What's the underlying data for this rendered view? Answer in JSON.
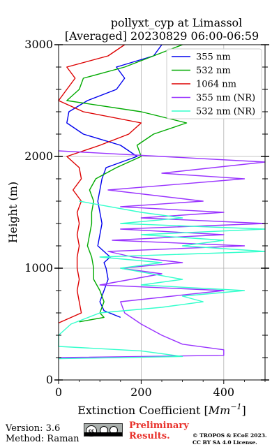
{
  "chart_data": {
    "type": "line",
    "title_line1": "pollyxt_cyp at Limassol",
    "title_line2": "[Averaged] 20230829 06:00-06:59",
    "xlabel": "Extinction Coefficient [",
    "xlabel_unit": "Mm",
    "xlabel_exp": "−1",
    "xlabel_close": "]",
    "ylabel": "Height (m)",
    "xlim": [
      0,
      500
    ],
    "ylim": [
      0,
      3000
    ],
    "xticks": [
      0,
      200,
      400
    ],
    "yticks": [
      0,
      1000,
      2000,
      3000
    ],
    "xtick_labels": [
      "0",
      "200",
      "400"
    ],
    "ytick_labels": [
      "0",
      "1000",
      "2000",
      "3000"
    ],
    "grid": true,
    "legend_position": "top-right",
    "series": [
      {
        "name": "355 nm",
        "color": "#0000ee",
        "points": [
          [
            150,
            560
          ],
          [
            110,
            620
          ],
          [
            100,
            700
          ],
          [
            110,
            800
          ],
          [
            120,
            900
          ],
          [
            115,
            1000
          ],
          [
            110,
            1050
          ],
          [
            125,
            1100
          ],
          [
            95,
            1200
          ],
          [
            100,
            1300
          ],
          [
            105,
            1400
          ],
          [
            100,
            1500
          ],
          [
            95,
            1600
          ],
          [
            100,
            1700
          ],
          [
            105,
            1800
          ],
          [
            115,
            1900
          ],
          [
            190,
            2000
          ],
          [
            150,
            2100
          ],
          [
            60,
            2200
          ],
          [
            20,
            2300
          ],
          [
            25,
            2400
          ],
          [
            70,
            2500
          ],
          [
            140,
            2600
          ],
          [
            160,
            2700
          ],
          [
            140,
            2800
          ],
          [
            230,
            2900
          ],
          [
            250,
            3000
          ]
        ]
      },
      {
        "name": "532 nm",
        "color": "#00aa00",
        "points": [
          [
            50,
            520
          ],
          [
            110,
            560
          ],
          [
            100,
            600
          ],
          [
            110,
            700
          ],
          [
            100,
            800
          ],
          [
            85,
            900
          ],
          [
            85,
            1000
          ],
          [
            80,
            1100
          ],
          [
            70,
            1200
          ],
          [
            75,
            1300
          ],
          [
            80,
            1400
          ],
          [
            80,
            1500
          ],
          [
            85,
            1600
          ],
          [
            75,
            1700
          ],
          [
            90,
            1800
          ],
          [
            140,
            1900
          ],
          [
            200,
            2000
          ],
          [
            190,
            2100
          ],
          [
            230,
            2200
          ],
          [
            310,
            2300
          ],
          [
            200,
            2400
          ],
          [
            20,
            2500
          ],
          [
            50,
            2600
          ],
          [
            60,
            2700
          ],
          [
            160,
            2800
          ],
          [
            230,
            2900
          ],
          [
            300,
            3000
          ]
        ]
      },
      {
        "name": "1064 nm",
        "color": "#dd0000",
        "points": [
          [
            0,
            510
          ],
          [
            55,
            600
          ],
          [
            50,
            700
          ],
          [
            45,
            800
          ],
          [
            50,
            900
          ],
          [
            45,
            1000
          ],
          [
            45,
            1100
          ],
          [
            50,
            1200
          ],
          [
            45,
            1300
          ],
          [
            50,
            1400
          ],
          [
            45,
            1500
          ],
          [
            55,
            1600
          ],
          [
            35,
            1700
          ],
          [
            55,
            1800
          ],
          [
            50,
            1900
          ],
          [
            20,
            2000
          ],
          [
            100,
            2100
          ],
          [
            170,
            2200
          ],
          [
            200,
            2300
          ],
          [
            60,
            2400
          ],
          [
            0,
            2500
          ],
          [
            20,
            2600
          ],
          [
            40,
            2700
          ],
          [
            20,
            2800
          ],
          [
            120,
            2900
          ],
          [
            160,
            3000
          ]
        ]
      },
      {
        "name": "355 nm (NR)",
        "color": "#9933ff",
        "points": [
          [
            0,
            200
          ],
          [
            400,
            220
          ],
          [
            400,
            270
          ],
          [
            300,
            320
          ],
          [
            250,
            400
          ],
          [
            200,
            500
          ],
          [
            160,
            600
          ],
          [
            150,
            700
          ],
          [
            400,
            800
          ],
          [
            100,
            850
          ],
          [
            250,
            950
          ],
          [
            150,
            1000
          ],
          [
            300,
            1050
          ],
          [
            180,
            1100
          ],
          [
            120,
            1150
          ],
          [
            450,
            1200
          ],
          [
            130,
            1250
          ],
          [
            400,
            1300
          ],
          [
            150,
            1350
          ],
          [
            500,
            1400
          ],
          [
            200,
            1450
          ],
          [
            400,
            1500
          ],
          [
            150,
            1550
          ],
          [
            350,
            1600
          ],
          [
            120,
            1700
          ],
          [
            450,
            1800
          ],
          [
            250,
            1850
          ],
          [
            500,
            1950
          ],
          [
            250,
            2000
          ],
          [
            0,
            2050
          ]
        ]
      },
      {
        "name": "532 nm (NR)",
        "color": "#33ffcc",
        "points": [
          [
            0,
            190
          ],
          [
            300,
            210
          ],
          [
            200,
            260
          ],
          [
            0,
            300
          ],
          [
            0,
            400
          ],
          [
            30,
            500
          ],
          [
            100,
            600
          ],
          [
            250,
            650
          ],
          [
            350,
            700
          ],
          [
            300,
            750
          ],
          [
            450,
            800
          ],
          [
            200,
            850
          ],
          [
            300,
            900
          ],
          [
            150,
            1000
          ],
          [
            250,
            1050
          ],
          [
            100,
            1100
          ],
          [
            500,
            1150
          ],
          [
            300,
            1200
          ],
          [
            400,
            1250
          ],
          [
            200,
            1300
          ],
          [
            500,
            1350
          ],
          [
            150,
            1400
          ],
          [
            300,
            1450
          ],
          [
            200,
            1500
          ],
          [
            50,
            1600
          ]
        ]
      }
    ]
  },
  "footer": {
    "version": "Version: 3.6",
    "method": "Method: Raman",
    "preliminary_line1": "Preliminary",
    "preliminary_line2": "Results.",
    "copyright_line1": "© TROPOS & ECoE 2023.",
    "copyright_line2": "CC BY SA 4.0 License.",
    "license_badge": "cc"
  }
}
